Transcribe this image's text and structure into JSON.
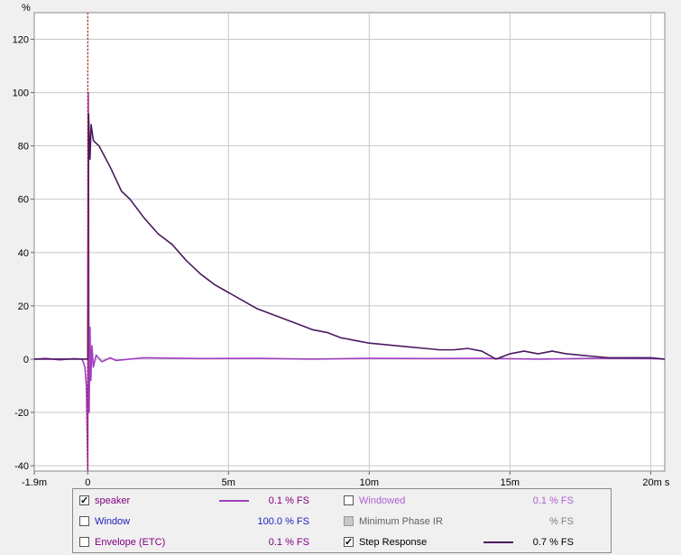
{
  "chart_data": {
    "type": "line",
    "y_unit": "%",
    "x_unit": "s",
    "xlim": [
      -0.0019,
      0.0205
    ],
    "ylim": [
      -42,
      130
    ],
    "x_ticks": [
      {
        "v": -0.0019,
        "label": "-1.9m"
      },
      {
        "v": 0,
        "label": "0"
      },
      {
        "v": 0.005,
        "label": "5m"
      },
      {
        "v": 0.01,
        "label": "10m"
      },
      {
        "v": 0.015,
        "label": "15m"
      },
      {
        "v": 0.02,
        "label": "20m s"
      }
    ],
    "y_ticks": [
      {
        "v": 120,
        "label": "120"
      },
      {
        "v": 100,
        "label": "100"
      },
      {
        "v": 80,
        "label": "80"
      },
      {
        "v": 60,
        "label": "60"
      },
      {
        "v": 40,
        "label": "40"
      },
      {
        "v": 20,
        "label": "20"
      },
      {
        "v": 0,
        "label": "0"
      },
      {
        "v": -20,
        "label": "-20"
      },
      {
        "v": -40,
        "label": "-40"
      }
    ],
    "marker_x": 0,
    "grid": true,
    "series": [
      {
        "name": "speaker",
        "color": "#a040c0",
        "points": [
          [
            -0.0019,
            0
          ],
          [
            -0.0015,
            0.3
          ],
          [
            -0.001,
            -0.3
          ],
          [
            -0.0005,
            0.2
          ],
          [
            -0.0002,
            0
          ],
          [
            -0.0001,
            -3
          ],
          [
            -5e-05,
            -10
          ],
          [
            0,
            -42
          ],
          [
            2e-05,
            100
          ],
          [
            5e-05,
            -20
          ],
          [
            8e-05,
            12
          ],
          [
            0.00011,
            -8
          ],
          [
            0.00015,
            5
          ],
          [
            0.0002,
            -3
          ],
          [
            0.0003,
            1.5
          ],
          [
            0.0005,
            -1
          ],
          [
            0.0008,
            0.5
          ],
          [
            0.001,
            -0.5
          ],
          [
            0.002,
            0.5
          ],
          [
            0.004,
            0.2
          ],
          [
            0.006,
            0.3
          ],
          [
            0.008,
            0
          ],
          [
            0.01,
            0.3
          ],
          [
            0.012,
            0.2
          ],
          [
            0.014,
            0.3
          ],
          [
            0.016,
            0
          ],
          [
            0.018,
            0.3
          ],
          [
            0.02,
            0.2
          ],
          [
            0.0205,
            0
          ]
        ]
      },
      {
        "name": "Step Response",
        "color": "#4a1a60",
        "points": [
          [
            -0.0019,
            0
          ],
          [
            -0.0001,
            0
          ],
          [
            0,
            0
          ],
          [
            3e-05,
            92
          ],
          [
            8e-05,
            75
          ],
          [
            0.00012,
            88
          ],
          [
            0.0002,
            82
          ],
          [
            0.0004,
            80
          ],
          [
            0.0008,
            72
          ],
          [
            0.0012,
            63
          ],
          [
            0.0015,
            60
          ],
          [
            0.002,
            53
          ],
          [
            0.0025,
            47
          ],
          [
            0.003,
            43
          ],
          [
            0.0035,
            37
          ],
          [
            0.004,
            32
          ],
          [
            0.0045,
            28
          ],
          [
            0.005,
            25
          ],
          [
            0.0055,
            22
          ],
          [
            0.006,
            19
          ],
          [
            0.0065,
            17
          ],
          [
            0.007,
            15
          ],
          [
            0.0075,
            13
          ],
          [
            0.008,
            11
          ],
          [
            0.0085,
            10
          ],
          [
            0.009,
            8
          ],
          [
            0.0095,
            7
          ],
          [
            0.01,
            6
          ],
          [
            0.0105,
            5.5
          ],
          [
            0.011,
            5
          ],
          [
            0.0115,
            4.5
          ],
          [
            0.012,
            4
          ],
          [
            0.0125,
            3.5
          ],
          [
            0.013,
            3.5
          ],
          [
            0.0135,
            4
          ],
          [
            0.014,
            3
          ],
          [
            0.0145,
            0
          ],
          [
            0.015,
            2
          ],
          [
            0.0155,
            3
          ],
          [
            0.016,
            2
          ],
          [
            0.0165,
            3
          ],
          [
            0.017,
            2
          ],
          [
            0.0175,
            1.5
          ],
          [
            0.018,
            1
          ],
          [
            0.0185,
            0.5
          ],
          [
            0.019,
            0.5
          ],
          [
            0.0195,
            0.5
          ],
          [
            0.02,
            0.5
          ],
          [
            0.0205,
            0
          ]
        ]
      }
    ]
  },
  "legend": {
    "items": [
      {
        "label": "speaker",
        "checked": true,
        "disabled": false,
        "color": "#a040c0",
        "label_color": "#800080",
        "value": "0.1 % FS",
        "value_color": "#800080"
      },
      {
        "label": "Windowed",
        "checked": false,
        "disabled": false,
        "color": "",
        "label_color": "#b060d0",
        "value": "0.1 % FS",
        "value_color": "#b060d0"
      },
      {
        "label": "Window",
        "checked": false,
        "disabled": false,
        "color": "",
        "label_color": "#2020c0",
        "value": "100.0 % FS",
        "value_color": "#2020c0"
      },
      {
        "label": "Minimum Phase IR",
        "checked": false,
        "disabled": true,
        "color": "",
        "label_color": "#606060",
        "value": "% FS",
        "value_color": "#808080"
      },
      {
        "label": "Envelope (ETC)",
        "checked": false,
        "disabled": false,
        "color": "",
        "label_color": "#800080",
        "value": "0.1 % FS",
        "value_color": "#800080"
      },
      {
        "label": "Step Response",
        "checked": true,
        "disabled": false,
        "color": "#4a1a60",
        "label_color": "#000000",
        "value": "0.7 % FS",
        "value_color": "#000000"
      }
    ]
  }
}
